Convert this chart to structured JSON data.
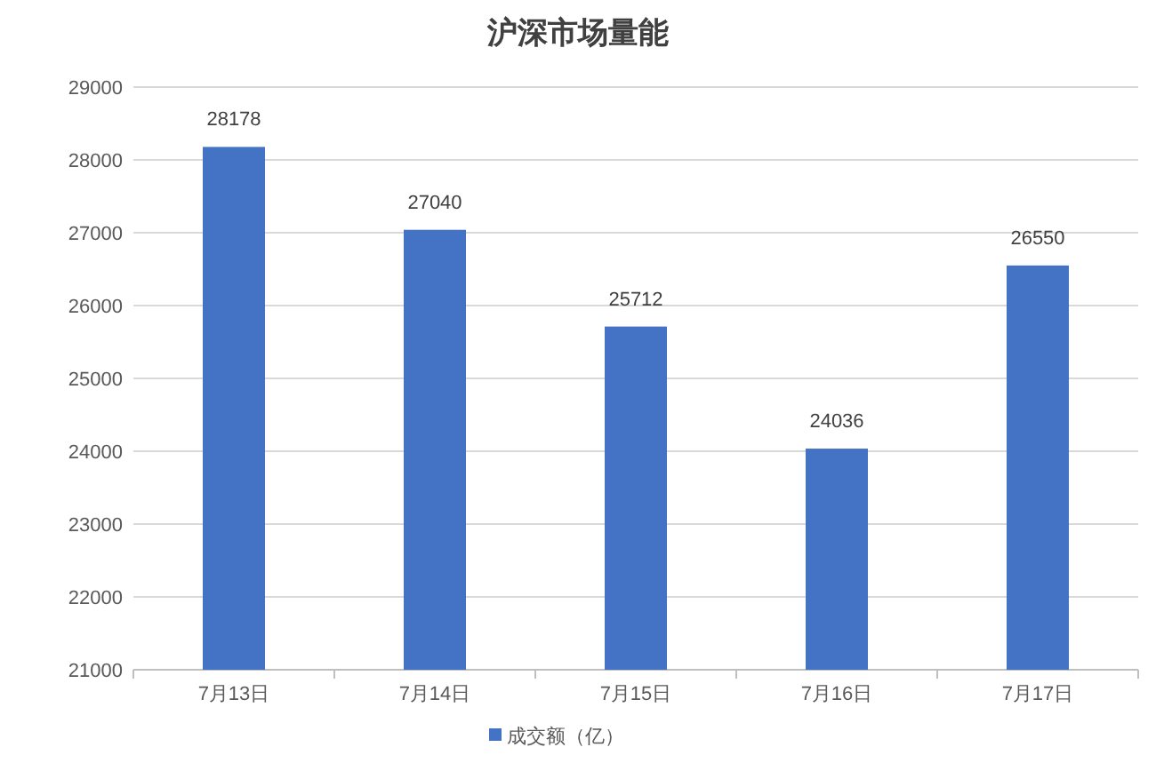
{
  "chart_data": {
    "type": "bar",
    "title": "沪深市场量能",
    "categories": [
      "7月13日",
      "7月14日",
      "7月15日",
      "7月16日",
      "7月17日"
    ],
    "series": [
      {
        "name": "成交额（亿）",
        "color": "#4472c4",
        "values": [
          28178,
          27040,
          25712,
          24036,
          26550
        ]
      }
    ],
    "ylim": [
      21000,
      29000
    ],
    "yticks": [
      21000,
      22000,
      23000,
      24000,
      25000,
      26000,
      27000,
      28000,
      29000
    ],
    "grid": "y",
    "legend": "bottom",
    "data_labels": true
  }
}
